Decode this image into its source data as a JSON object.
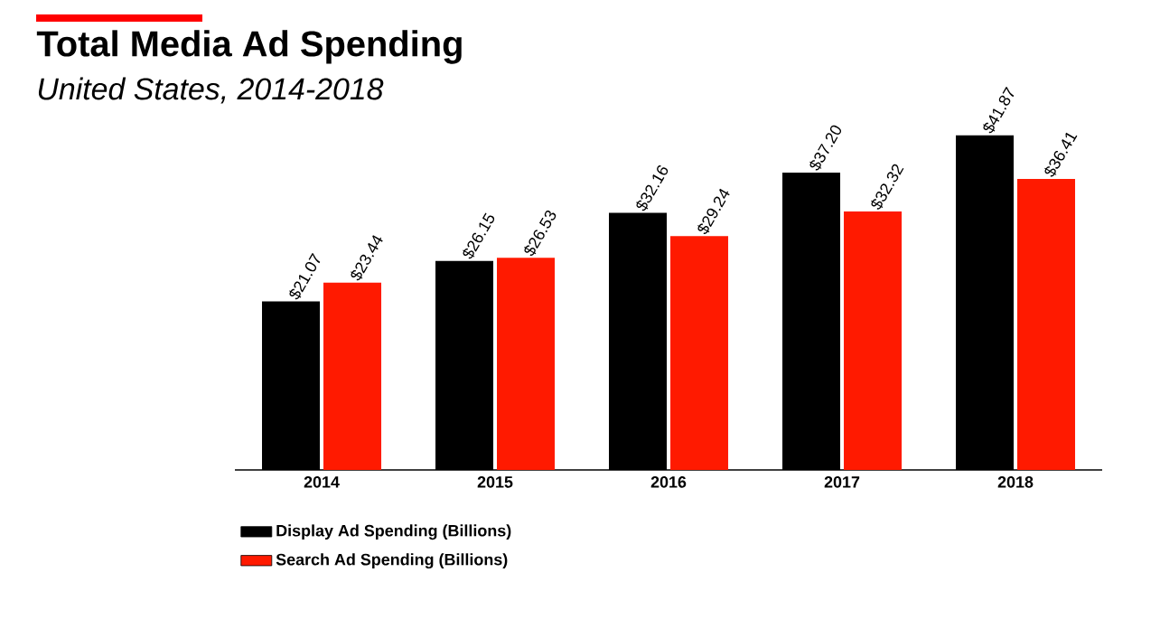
{
  "chart_data": {
    "type": "bar",
    "title": "Total Media Ad Spending",
    "subtitle": "United States, 2014-2018",
    "categories": [
      "2014",
      "2015",
      "2016",
      "2017",
      "2018"
    ],
    "series": [
      {
        "name": "Display Ad Spending (Billions)",
        "color": "#000000",
        "values": [
          21.07,
          26.15,
          32.16,
          37.2,
          41.87
        ],
        "value_labels": [
          "$21.07",
          "$26.15",
          "$32.16",
          "$37.20",
          "$41.87"
        ]
      },
      {
        "name": "Search Ad Spending (Billions)",
        "color": "#ff1a00",
        "values": [
          23.44,
          26.53,
          29.24,
          32.32,
          36.41
        ],
        "value_labels": [
          "$23.44",
          "$26.53",
          "$29.24",
          "$32.32",
          "$36.41"
        ]
      }
    ],
    "legend": "bottom left",
    "tick_labels": "x"
  }
}
